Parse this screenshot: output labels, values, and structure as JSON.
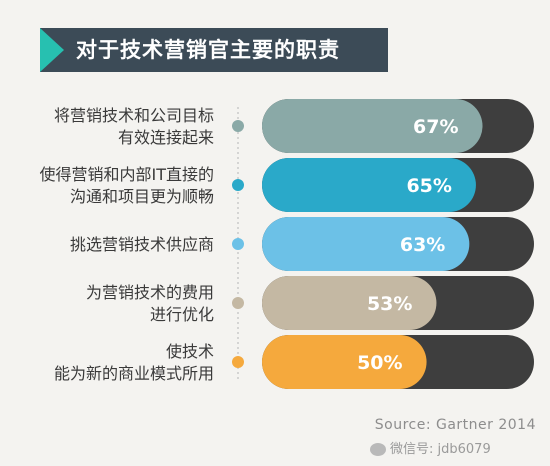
{
  "title": "对于技术营销官主要的职责",
  "source": "Source: Gartner 2014",
  "watermark": "微信号: jdb6079",
  "colors": {
    "title_bg": "#3c4b57",
    "title_accent": "#27c0b0",
    "track": "#3e3e3e",
    "dotted_line": "#c9c9c9"
  },
  "chart_data": {
    "type": "bar",
    "orientation": "horizontal",
    "xlim": [
      0,
      100
    ],
    "grid": false,
    "categories": [
      [
        "将营销技术和公司目标",
        "有效连接起来"
      ],
      [
        "使得营销和内部IT直接的",
        "沟通和项目更为顺畅"
      ],
      [
        "挑选营销技术供应商"
      ],
      [
        "为营销技术的费用",
        "进行优化"
      ],
      [
        "使技术",
        "能为新的商业模式所用"
      ]
    ],
    "values": [
      67,
      65,
      63,
      53,
      50
    ],
    "value_labels": [
      "67%",
      "65%",
      "63%",
      "53%",
      "50%"
    ],
    "bar_colors": [
      "#8aa9a7",
      "#2aa9c9",
      "#6cc1e7",
      "#c4b8a3",
      "#f5a93d"
    ]
  }
}
